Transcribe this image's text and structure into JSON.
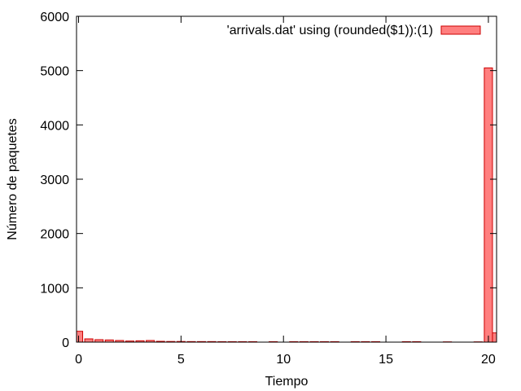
{
  "chart_data": {
    "type": "bar",
    "xlabel": "Tiempo",
    "ylabel": "Número de paquetes",
    "xlim": [
      -0.1,
      20.4
    ],
    "ylim": [
      0,
      6000
    ],
    "x_ticks": [
      0,
      5,
      10,
      15,
      20
    ],
    "y_ticks": [
      0,
      1000,
      2000,
      3000,
      4000,
      5000,
      6000
    ],
    "grid": false,
    "legend_position": "top-right",
    "bar_width": 0.4,
    "series": [
      {
        "name": "'arrivals.dat' using (rounded($1)):(1)",
        "color": "#ff7f7f",
        "edge_color": "#cc0000",
        "x": [
          0,
          0.5,
          1.0,
          1.5,
          2.0,
          2.5,
          3.0,
          3.5,
          4.0,
          4.5,
          5.0,
          5.5,
          6.0,
          6.5,
          7.0,
          7.5,
          8.0,
          8.5,
          9.5,
          10.5,
          11.0,
          11.5,
          12.0,
          12.5,
          13.5,
          14.0,
          14.5,
          16.0,
          16.5,
          18.0,
          19.5,
          20.0,
          20.4
        ],
        "values": [
          200,
          60,
          45,
          40,
          30,
          20,
          25,
          30,
          15,
          12,
          12,
          10,
          10,
          10,
          8,
          8,
          8,
          8,
          8,
          8,
          8,
          8,
          8,
          8,
          8,
          8,
          8,
          8,
          8,
          5,
          5,
          5050,
          170
        ]
      }
    ]
  }
}
